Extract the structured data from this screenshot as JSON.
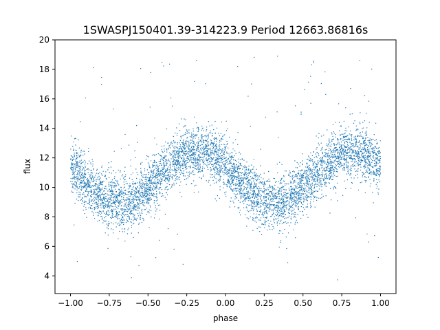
{
  "chart_data": {
    "type": "scatter",
    "title": "1SWASPJ150401.39-314223.9 Period 12663.86816s",
    "xlabel": "phase",
    "ylabel": "flux",
    "xlim": [
      -1.1,
      1.1
    ],
    "ylim": [
      2.8,
      20
    ],
    "xticks": [
      -1.0,
      -0.75,
      -0.5,
      -0.25,
      0.0,
      0.25,
      0.5,
      0.75,
      1.0
    ],
    "xtick_labels": [
      "−1.00",
      "−0.75",
      "−0.50",
      "−0.25",
      "0.00",
      "0.25",
      "0.50",
      "0.75",
      "1.00"
    ],
    "yticks": [
      4,
      6,
      8,
      10,
      12,
      14,
      16,
      18,
      20
    ],
    "ytick_labels": [
      "4",
      "6",
      "8",
      "10",
      "12",
      "14",
      "16",
      "18",
      "20"
    ],
    "grid": false,
    "legend": "none",
    "marker_color": "#1f77b4",
    "series": [
      {
        "phase_range": [
          -1.0,
          1.0
        ],
        "light_curve_model": {
          "mean_flux": 10.7,
          "amplitude": 1.8,
          "cycles_per_unit_phase": 1.0,
          "peak_phase": -0.18,
          "secondary_peak_phase": 0.82,
          "minimum_phases": [
            -0.65,
            0.35
          ],
          "minimum_flux": 8.9,
          "maximum_flux": 12.6
        },
        "approx_points_count": 60000,
        "flux_scatter_sd": 0.9,
        "outlier_flux_range": [
          3.6,
          19.3
        ]
      }
    ]
  }
}
